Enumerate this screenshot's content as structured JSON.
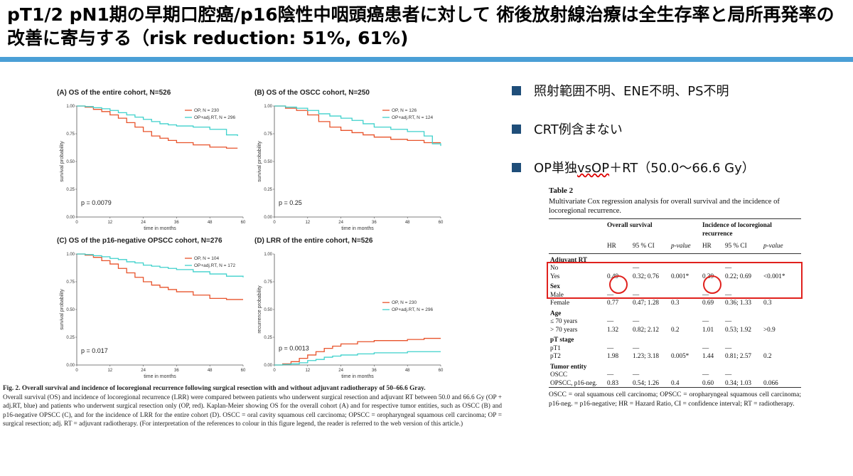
{
  "slide": {
    "title": "pT1/2  pN1期の早期口腔癌/p16陰性中咽頭癌患者に対して 術後放射線治療は全生存率と局所再発率の改善に寄与する（risk reduction: 51%, 61%)",
    "colors": {
      "rule": "#4a9fd6",
      "bullet": "#1f4e79",
      "highlight": "#e0211d"
    }
  },
  "bullets": [
    "照射範囲不明、ENE不明、PS不明",
    "CRT例含まない",
    {
      "pre": "OP単独",
      "underlined": "vsOP",
      "post": "＋RT（50.0〜66.6 Gy）"
    }
  ],
  "chart_data": [
    {
      "type": "line",
      "title": "(A) OS of the entire cohort, N=526",
      "xlabel": "time in months",
      "ylabel": "survival probability",
      "xlim": [
        0,
        60
      ],
      "ylim": [
        0,
        1
      ],
      "xticks": [
        "0",
        "12",
        "24",
        "36",
        "48",
        "60"
      ],
      "yticks": [
        "0.00",
        "0.25",
        "0.50",
        "0.75",
        "1.00"
      ],
      "annotation": "p = 0.0079",
      "series": [
        {
          "name": "OP, N = 230",
          "color": "#e8532b",
          "points": [
            [
              0,
              1
            ],
            [
              3,
              0.99
            ],
            [
              6,
              0.97
            ],
            [
              9,
              0.95
            ],
            [
              12,
              0.92
            ],
            [
              15,
              0.89
            ],
            [
              18,
              0.85
            ],
            [
              21,
              0.81
            ],
            [
              24,
              0.77
            ],
            [
              27,
              0.73
            ],
            [
              30,
              0.71
            ],
            [
              33,
              0.69
            ],
            [
              36,
              0.67
            ],
            [
              42,
              0.65
            ],
            [
              48,
              0.63
            ],
            [
              54,
              0.62
            ],
            [
              58,
              0.62
            ]
          ]
        },
        {
          "name": "OP+adj.RT, N = 296",
          "color": "#3fd1cc",
          "points": [
            [
              0,
              1
            ],
            [
              3,
              0.995
            ],
            [
              6,
              0.985
            ],
            [
              9,
              0.975
            ],
            [
              12,
              0.96
            ],
            [
              15,
              0.94
            ],
            [
              18,
              0.92
            ],
            [
              21,
              0.9
            ],
            [
              24,
              0.88
            ],
            [
              27,
              0.86
            ],
            [
              30,
              0.84
            ],
            [
              33,
              0.83
            ],
            [
              36,
              0.82
            ],
            [
              42,
              0.81
            ],
            [
              48,
              0.79
            ],
            [
              54,
              0.74
            ],
            [
              58,
              0.73
            ]
          ]
        }
      ]
    },
    {
      "type": "line",
      "title": "(B) OS of the OSCC cohort, N=250",
      "xlabel": "time in months",
      "ylabel": "survival probability",
      "xlim": [
        0,
        60
      ],
      "ylim": [
        0,
        1
      ],
      "xticks": [
        "0",
        "12",
        "24",
        "36",
        "48",
        "60"
      ],
      "yticks": [
        "0.00",
        "0.25",
        "0.50",
        "0.75",
        "1.00"
      ],
      "annotation": "p = 0.25",
      "series": [
        {
          "name": "OP, N = 126",
          "color": "#e8532b",
          "points": [
            [
              0,
              1
            ],
            [
              4,
              0.98
            ],
            [
              8,
              0.96
            ],
            [
              12,
              0.92
            ],
            [
              16,
              0.86
            ],
            [
              20,
              0.81
            ],
            [
              24,
              0.78
            ],
            [
              28,
              0.76
            ],
            [
              32,
              0.74
            ],
            [
              36,
              0.72
            ],
            [
              42,
              0.7
            ],
            [
              48,
              0.69
            ],
            [
              54,
              0.67
            ],
            [
              60,
              0.67
            ]
          ]
        },
        {
          "name": "OP+adj.RT, N = 124",
          "color": "#3fd1cc",
          "points": [
            [
              0,
              1
            ],
            [
              4,
              0.99
            ],
            [
              8,
              0.98
            ],
            [
              12,
              0.96
            ],
            [
              16,
              0.93
            ],
            [
              20,
              0.91
            ],
            [
              24,
              0.89
            ],
            [
              28,
              0.87
            ],
            [
              32,
              0.84
            ],
            [
              36,
              0.81
            ],
            [
              42,
              0.79
            ],
            [
              48,
              0.77
            ],
            [
              54,
              0.73
            ],
            [
              57,
              0.66
            ],
            [
              60,
              0.64
            ]
          ]
        }
      ]
    },
    {
      "type": "line",
      "title": "(C) OS of the p16-negative OPSCC cohort, N=276",
      "xlabel": "time in months",
      "ylabel": "survival probability",
      "xlim": [
        0,
        60
      ],
      "ylim": [
        0,
        1
      ],
      "xticks": [
        "0",
        "12",
        "24",
        "36",
        "48",
        "60"
      ],
      "yticks": [
        "0.00",
        "0.25",
        "0.50",
        "0.75",
        "1.00"
      ],
      "annotation": "p = 0.017",
      "series": [
        {
          "name": "OP, N = 104",
          "color": "#e8532b",
          "points": [
            [
              0,
              1
            ],
            [
              3,
              0.99
            ],
            [
              6,
              0.97
            ],
            [
              9,
              0.94
            ],
            [
              12,
              0.91
            ],
            [
              15,
              0.87
            ],
            [
              18,
              0.83
            ],
            [
              21,
              0.79
            ],
            [
              24,
              0.75
            ],
            [
              27,
              0.72
            ],
            [
              30,
              0.7
            ],
            [
              33,
              0.68
            ],
            [
              36,
              0.66
            ],
            [
              42,
              0.63
            ],
            [
              48,
              0.6
            ],
            [
              54,
              0.59
            ],
            [
              60,
              0.59
            ]
          ]
        },
        {
          "name": "OP+adj.RT, N = 172",
          "color": "#3fd1cc",
          "points": [
            [
              0,
              1
            ],
            [
              3,
              0.995
            ],
            [
              6,
              0.985
            ],
            [
              9,
              0.975
            ],
            [
              12,
              0.96
            ],
            [
              15,
              0.95
            ],
            [
              18,
              0.93
            ],
            [
              21,
              0.92
            ],
            [
              24,
              0.9
            ],
            [
              27,
              0.89
            ],
            [
              30,
              0.88
            ],
            [
              33,
              0.87
            ],
            [
              36,
              0.86
            ],
            [
              42,
              0.84
            ],
            [
              48,
              0.82
            ],
            [
              54,
              0.8
            ],
            [
              60,
              0.79
            ]
          ]
        }
      ]
    },
    {
      "type": "line",
      "title": "(D) LRR of the entire cohort, N=526",
      "xlabel": "time in months",
      "ylabel": "recurrence probability",
      "xlim": [
        0,
        60
      ],
      "ylim": [
        0,
        1
      ],
      "xticks": [
        "0",
        "12",
        "24",
        "36",
        "48",
        "60"
      ],
      "yticks": [
        "0.00",
        "0.25",
        "0.50",
        "0.75",
        "1.00"
      ],
      "annotation": "p = 0.0013",
      "series": [
        {
          "name": "OP, N = 230",
          "color": "#e8532b",
          "points": [
            [
              0,
              0
            ],
            [
              3,
              0.01
            ],
            [
              6,
              0.03
            ],
            [
              9,
              0.06
            ],
            [
              12,
              0.09
            ],
            [
              15,
              0.12
            ],
            [
              18,
              0.15
            ],
            [
              21,
              0.17
            ],
            [
              24,
              0.19
            ],
            [
              30,
              0.21
            ],
            [
              36,
              0.22
            ],
            [
              48,
              0.23
            ],
            [
              54,
              0.24
            ],
            [
              60,
              0.24
            ]
          ]
        },
        {
          "name": "OP+adj.RT, N = 296",
          "color": "#3fd1cc",
          "points": [
            [
              0,
              0
            ],
            [
              3,
              0.005
            ],
            [
              6,
              0.01
            ],
            [
              9,
              0.02
            ],
            [
              12,
              0.04
            ],
            [
              15,
              0.05
            ],
            [
              18,
              0.07
            ],
            [
              21,
              0.08
            ],
            [
              24,
              0.09
            ],
            [
              30,
              0.1
            ],
            [
              36,
              0.11
            ],
            [
              48,
              0.12
            ],
            [
              60,
              0.12
            ]
          ]
        }
      ]
    }
  ],
  "caption": {
    "bold": "Fig. 2. Overall survival and incidence of locoregional recurrence following surgical resection with and without adjuvant radiotherapy of 50–66.6 Gray.",
    "text": "Overall survival (OS) and incidence of locoregional recurrence (LRR) were compared between patients who underwent surgical resection and adjuvant RT between 50.0 and 66.6 Gy (OP + adj.RT, blue) and patients who underwent surgical resection only (OP, red). Kaplan-Meier showing OS for the overall cohort (A) and for respective tumor entities, such as OSCC (B) and p16-negative OPSCC (C), and for the incidence of LRR for the entire cohort (D). OSCC = oral cavity squamous cell carcinoma; OPSCC = oropharyngeal squamous cell carcinoma; OP = surgical resection; adj. RT = adjuvant radiotherapy. (For interpretation of the references to colour in this figure legend, the reader is referred to the web version of this article.)"
  },
  "table": {
    "label": "Table 2",
    "caption": "Multivariate Cox regression analysis for overall survival and the incidence of locoregional recurrence.",
    "group_headers": [
      "Overall survival",
      "Incidence of locoregional recurrence"
    ],
    "col_headers": [
      "HR",
      "95 % CI",
      "p-value",
      "HR",
      "95 % CI",
      "p-value"
    ],
    "rows": [
      {
        "type": "group",
        "label": "Adjuvant RT"
      },
      {
        "label": "No",
        "cells": [
          "",
          "—",
          "",
          "",
          "—",
          ""
        ]
      },
      {
        "label": "Yes",
        "cells": [
          "0.49",
          "0.32; 0.76",
          "0.001*",
          "0.39",
          "0.22; 0.69",
          "<0.001*"
        ]
      },
      {
        "type": "group",
        "label": "Sex"
      },
      {
        "label": "Male",
        "cells": [
          "—",
          "—",
          "",
          "—",
          "—",
          ""
        ]
      },
      {
        "label": "Female",
        "cells": [
          "0.77",
          "0.47; 1.28",
          "0.3",
          "0.69",
          "0.36; 1.33",
          "0.3"
        ]
      },
      {
        "type": "group",
        "label": "Age"
      },
      {
        "label": "≤ 70 years",
        "cells": [
          "—",
          "—",
          "",
          "—",
          "—",
          ""
        ]
      },
      {
        "label": "> 70 years",
        "cells": [
          "1.32",
          "0.82; 2.12",
          "0.2",
          "1.01",
          "0.53; 1.92",
          ">0.9"
        ]
      },
      {
        "type": "group",
        "label": "pT stage"
      },
      {
        "label": "pT1",
        "cells": [
          "—",
          "—",
          "",
          "—",
          "—",
          ""
        ]
      },
      {
        "label": "pT2",
        "cells": [
          "1.98",
          "1.23; 3.18",
          "0.005*",
          "1.44",
          "0.81; 2.57",
          "0.2"
        ]
      },
      {
        "type": "group",
        "label": "Tumor entity"
      },
      {
        "label": "OSCC",
        "cells": [
          "—",
          "—",
          "",
          "—",
          "—",
          ""
        ]
      },
      {
        "label": "OPSCC, p16-neg.",
        "cells": [
          "0.83",
          "0.54; 1.26",
          "0.4",
          "0.60",
          "0.34; 1.03",
          "0.066"
        ]
      }
    ],
    "footnote": "OSCC = oral squamous cell carcinoma; OPSCC = oropharyngeal squamous cell carcinoma; p16-neg. = p16-negative; HR = Hazard Ratio, CI = confidence interval; RT = radiotherapy."
  }
}
